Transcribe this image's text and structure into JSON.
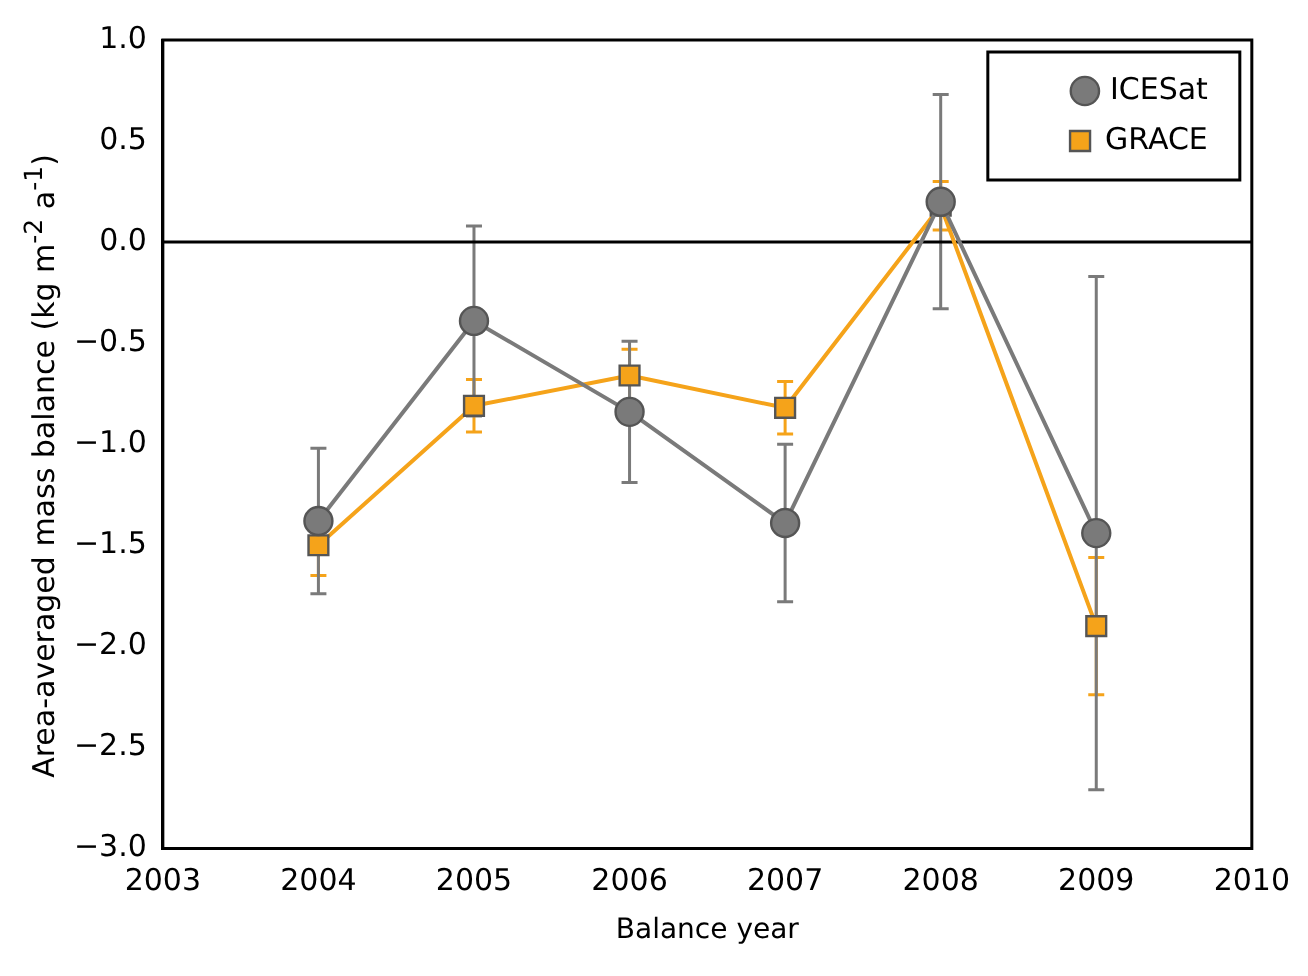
{
  "chart_data": {
    "type": "line",
    "xlabel": "Balance year",
    "ylabel": "Area-averaged mass balance (kg m$^{-2}$ a$^{-1}$)",
    "x": [
      2004,
      2005,
      2006,
      2007,
      2008,
      2009
    ],
    "series": [
      {
        "name": "GRACE",
        "color": "#f5a31a",
        "values": [
          -1.5,
          -0.81,
          -0.66,
          -0.82,
          0.18,
          -1.9
        ],
        "errors": [
          0.15,
          0.13,
          0.13,
          0.13,
          0.12,
          0.34
        ],
        "marker": "square"
      },
      {
        "name": "ICESat",
        "color": "#7a7a7a",
        "values": [
          -1.38,
          -0.39,
          -0.84,
          -1.39,
          0.2,
          -1.44
        ],
        "errors": [
          0.36,
          0.47,
          0.35,
          0.39,
          0.53,
          1.27
        ],
        "marker": "circle"
      }
    ],
    "xlim": [
      2003,
      2010
    ],
    "xticks": [
      2003,
      2004,
      2005,
      2006,
      2007,
      2008,
      2009,
      2010
    ],
    "ylim": [
      -3,
      1
    ],
    "yticks": [
      {
        "value": -3,
        "label": "−3.0"
      },
      {
        "value": -2.5,
        "label": "−2.5"
      },
      {
        "value": -2,
        "label": "−2.0"
      },
      {
        "value": -1.5,
        "label": "−1.5"
      },
      {
        "value": -1,
        "label": "−1.0"
      },
      {
        "value": -0.5,
        "label": "−0.5"
      },
      {
        "value": 0,
        "label": "0.0"
      },
      {
        "value": 0.5,
        "label": "0.5"
      },
      {
        "value": 1,
        "label": "1.0"
      }
    ],
    "ref_lines": [
      {
        "axis": "y",
        "value": 0,
        "color": "#000000"
      }
    ],
    "grid": false,
    "legend": "top right"
  }
}
